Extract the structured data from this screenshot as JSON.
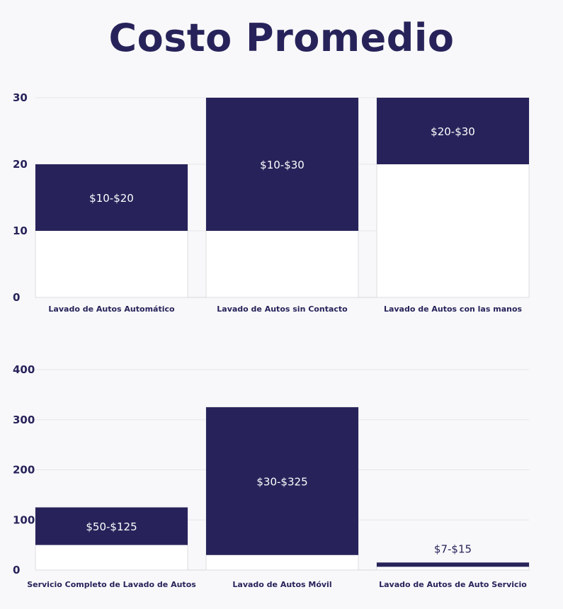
{
  "title": "Costo Promedio",
  "colors": {
    "bar": "#27235a",
    "background": "#f8f8fa",
    "column": "#ffffff",
    "grid": "#e6e6ea"
  },
  "chart_data": [
    {
      "type": "bar",
      "subtype": "floating-range",
      "categories": [
        "Lavado de Autos Automático",
        "Lavado de Autos sin Contacto",
        "Lavado de Autos con las manos"
      ],
      "ranges": [
        [
          10,
          20
        ],
        [
          10,
          30
        ],
        [
          20,
          30
        ]
      ],
      "data_labels": [
        "$10-$20",
        "$10-$30",
        "$20-$30"
      ],
      "yticks": [
        0,
        10,
        20,
        30
      ],
      "ylim": [
        0,
        30
      ],
      "grid": true
    },
    {
      "type": "bar",
      "subtype": "floating-range",
      "categories": [
        "Servicio Completo de Lavado de Autos",
        "Lavado de Autos Móvil",
        "Lavado de Autos de Auto Servicio"
      ],
      "ranges": [
        [
          50,
          125
        ],
        [
          30,
          325
        ],
        [
          7,
          15
        ]
      ],
      "data_labels": [
        "$50-$125",
        "$30-$325",
        "$7-$15"
      ],
      "yticks": [
        0,
        100,
        200,
        300,
        400
      ],
      "ylim": [
        0,
        400
      ],
      "grid": true
    }
  ]
}
